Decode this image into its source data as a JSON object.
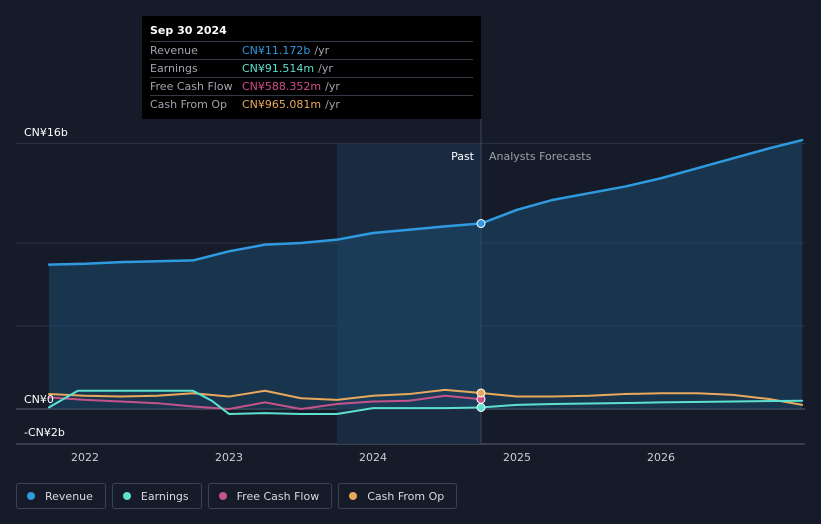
{
  "chart_data": {
    "type": "area",
    "y_axis": {
      "top_label": "CN¥16b",
      "zero_label": "CN¥0",
      "bottom_label": "-CN¥2b",
      "ylim": [
        -2,
        16
      ]
    },
    "x_ticks": [
      "2022",
      "2023",
      "2024",
      "2025",
      "2026"
    ],
    "divider": {
      "past_label": "Past",
      "forecast_label": "Analysts Forecasts",
      "date": 2024.75
    },
    "series": [
      {
        "name": "Revenue",
        "color": "#2f9ae0",
        "points": [
          [
            2021.75,
            8.7
          ],
          [
            2022.0,
            8.75
          ],
          [
            2022.25,
            8.85
          ],
          [
            2022.5,
            8.9
          ],
          [
            2022.75,
            8.95
          ],
          [
            2023.0,
            9.5
          ],
          [
            2023.25,
            9.9
          ],
          [
            2023.5,
            10.0
          ],
          [
            2023.75,
            10.2
          ],
          [
            2024.0,
            10.6
          ],
          [
            2024.25,
            10.8
          ],
          [
            2024.5,
            11.0
          ],
          [
            2024.75,
            11.172
          ],
          [
            2025.0,
            12.0
          ],
          [
            2025.25,
            12.6
          ],
          [
            2025.5,
            13.0
          ],
          [
            2025.75,
            13.4
          ],
          [
            2026.0,
            13.9
          ],
          [
            2026.25,
            14.5
          ],
          [
            2026.5,
            15.1
          ],
          [
            2026.75,
            15.7
          ],
          [
            2026.98,
            16.2
          ]
        ]
      },
      {
        "name": "Earnings",
        "color": "#5ee0cf",
        "points": [
          [
            2021.75,
            0.1
          ],
          [
            2021.95,
            1.1
          ],
          [
            2022.25,
            1.1
          ],
          [
            2022.5,
            1.1
          ],
          [
            2022.75,
            1.1
          ],
          [
            2022.88,
            0.5
          ],
          [
            2023.0,
            -0.3
          ],
          [
            2023.25,
            -0.25
          ],
          [
            2023.5,
            -0.3
          ],
          [
            2023.75,
            -0.3
          ],
          [
            2024.0,
            0.05
          ],
          [
            2024.25,
            0.05
          ],
          [
            2024.5,
            0.05
          ],
          [
            2024.75,
            0.092
          ],
          [
            2025.0,
            0.25
          ],
          [
            2025.25,
            0.3
          ],
          [
            2025.5,
            0.33
          ],
          [
            2025.75,
            0.36
          ],
          [
            2026.0,
            0.4
          ],
          [
            2026.5,
            0.45
          ],
          [
            2026.98,
            0.5
          ]
        ]
      },
      {
        "name": "Free Cash Flow",
        "color": "#c4538a",
        "points": [
          [
            2021.75,
            0.7
          ],
          [
            2022.0,
            0.55
          ],
          [
            2022.25,
            0.45
          ],
          [
            2022.5,
            0.35
          ],
          [
            2022.75,
            0.15
          ],
          [
            2023.0,
            0.0
          ],
          [
            2023.25,
            0.4
          ],
          [
            2023.5,
            0.0
          ],
          [
            2023.75,
            0.3
          ],
          [
            2024.0,
            0.45
          ],
          [
            2024.25,
            0.5
          ],
          [
            2024.5,
            0.8
          ],
          [
            2024.75,
            0.588
          ]
        ]
      },
      {
        "name": "Cash From Op",
        "color": "#e8a95c",
        "points": [
          [
            2021.75,
            0.9
          ],
          [
            2022.0,
            0.8
          ],
          [
            2022.25,
            0.75
          ],
          [
            2022.5,
            0.8
          ],
          [
            2022.75,
            0.95
          ],
          [
            2023.0,
            0.75
          ],
          [
            2023.25,
            1.1
          ],
          [
            2023.5,
            0.65
          ],
          [
            2023.75,
            0.55
          ],
          [
            2024.0,
            0.8
          ],
          [
            2024.25,
            0.9
          ],
          [
            2024.5,
            1.15
          ],
          [
            2024.75,
            0.965
          ],
          [
            2025.0,
            0.75
          ],
          [
            2025.25,
            0.75
          ],
          [
            2025.5,
            0.8
          ],
          [
            2025.75,
            0.9
          ],
          [
            2026.0,
            0.95
          ],
          [
            2026.25,
            0.95
          ],
          [
            2026.5,
            0.85
          ],
          [
            2026.75,
            0.6
          ],
          [
            2026.98,
            0.25
          ]
        ]
      }
    ]
  },
  "tooltip": {
    "date": "Sep 30 2024",
    "unit": "/yr",
    "rows": [
      {
        "label": "Revenue",
        "value": "CN¥11.172b",
        "color": "#2f9ae0"
      },
      {
        "label": "Earnings",
        "value": "CN¥91.514m",
        "color": "#5ee0cf"
      },
      {
        "label": "Free Cash Flow",
        "value": "CN¥588.352m",
        "color": "#d14f8a"
      },
      {
        "label": "Cash From Op",
        "value": "CN¥965.081m",
        "color": "#e8a95c"
      }
    ]
  },
  "legend": [
    {
      "label": "Revenue",
      "color": "#2f9ae0"
    },
    {
      "label": "Earnings",
      "color": "#5ee0cf"
    },
    {
      "label": "Free Cash Flow",
      "color": "#c4538a"
    },
    {
      "label": "Cash From Op",
      "color": "#e8a95c"
    }
  ]
}
